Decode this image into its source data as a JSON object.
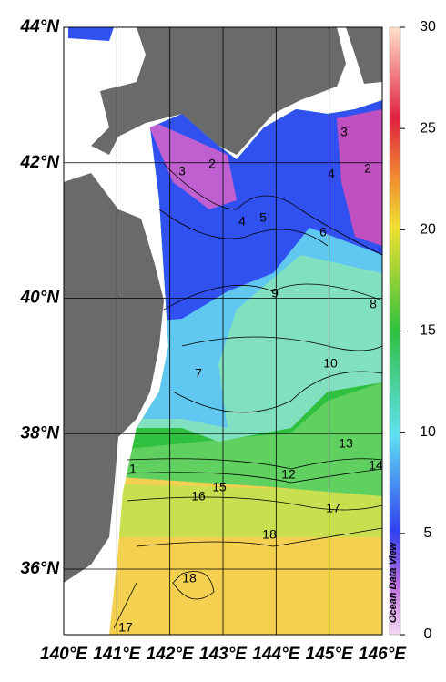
{
  "map": {
    "lat_labels": [
      "44°N",
      "42°N",
      "40°N",
      "38°N",
      "36°N"
    ],
    "lon_labels": [
      "140°E",
      "141°E",
      "142°E",
      "143°E",
      "144°E",
      "145°E",
      "146°E"
    ],
    "contour_labels": [
      2,
      2,
      3,
      3,
      4,
      4,
      5,
      6,
      7,
      8,
      9,
      10,
      12,
      13,
      14,
      15,
      16,
      17,
      17,
      18,
      18,
      1
    ],
    "colorbar": {
      "range": [
        0,
        30
      ],
      "ticks": [
        0,
        5,
        10,
        15,
        20,
        25,
        30
      ]
    },
    "credit": "Ocean Data View"
  }
}
